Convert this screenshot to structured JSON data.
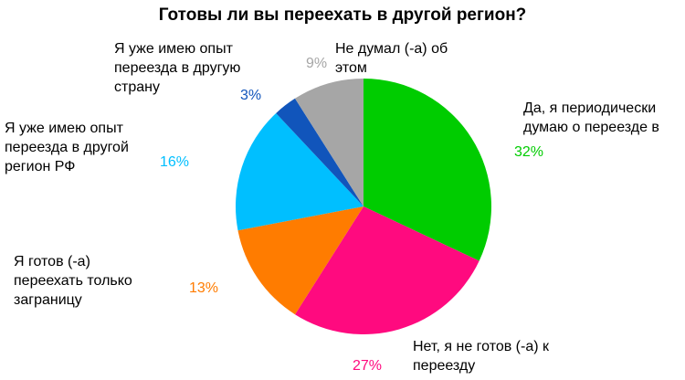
{
  "chart_data": {
    "type": "pie",
    "title": "Готовы ли вы переехать в другой регион?",
    "start": "top",
    "direction": "clockwise",
    "slices": [
      {
        "label": "Да, я периодически\nдумаю о переезде в",
        "value": 32,
        "value_label": "32%",
        "color": "#00cc00"
      },
      {
        "label": "Нет, я не готов (-а) к\nпереезду",
        "value": 27,
        "value_label": "27%",
        "color": "#ff0a7f"
      },
      {
        "label": "Я готов (-а)\nпереехать только\nзаграницу",
        "value": 13,
        "value_label": "13%",
        "color": "#ff7c00"
      },
      {
        "label": "Я уже имею опыт\nпереезда в другой\nрегион РФ",
        "value": 16,
        "value_label": "16%",
        "color": "#00bfff"
      },
      {
        "label": "Я уже имею опыт\nпереезда в другую\nстрану",
        "value": 3,
        "value_label": "3%",
        "color": "#1155bb"
      },
      {
        "label": "Не думал (-а) об\nэтом",
        "value": 9,
        "value_label": "9%",
        "color": "#a6a6a6"
      }
    ]
  }
}
